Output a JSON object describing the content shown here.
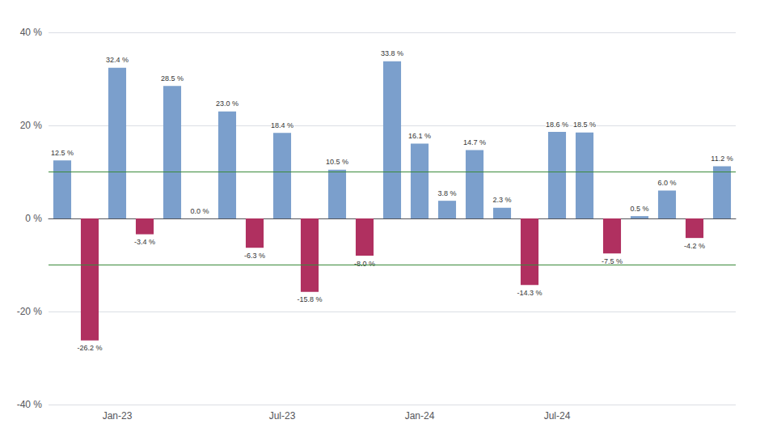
{
  "chart_data": {
    "type": "bar",
    "categories": [
      null,
      null,
      "Jan-23",
      null,
      null,
      null,
      null,
      null,
      "Jul-23",
      null,
      null,
      null,
      null,
      "Jan-24",
      null,
      null,
      null,
      null,
      "Jul-24",
      null,
      null,
      null,
      null,
      null,
      null
    ],
    "values": [
      12.5,
      -26.2,
      32.4,
      -3.4,
      28.5,
      0.0,
      23.0,
      -6.3,
      18.4,
      -15.8,
      10.5,
      -8.0,
      33.8,
      16.1,
      3.8,
      14.7,
      2.3,
      -14.3,
      18.6,
      18.5,
      -7.5,
      0.5,
      6.0,
      -4.2,
      11.2
    ],
    "value_labels": [
      "12.5 %",
      "-26.2 %",
      "32.4 %",
      "-3.4 %",
      "28.5 %",
      "0.0 %",
      "23.0 %",
      "-6.3 %",
      "18.4 %",
      "-15.8 %",
      "10.5 %",
      "-8.0 %",
      "33.8 %",
      "16.1 %",
      "3.8 %",
      "14.7 %",
      "2.3 %",
      "-14.3 %",
      "18.6 %",
      "18.5 %",
      "-7.5 %",
      "0.5 %",
      "6.0 %",
      "-4.2 %",
      "11.2 %"
    ],
    "colors": [
      "#7B9FCC",
      "#B03060",
      "#7B9FCC",
      "#B03060",
      "#7B9FCC",
      "#B03060",
      "#7B9FCC",
      "#B03060",
      "#7B9FCC",
      "#B03060",
      "#7B9FCC",
      "#B03060",
      "#7B9FCC",
      "#7B9FCC",
      "#7B9FCC",
      "#7B9FCC",
      "#7B9FCC",
      "#B03060",
      "#7B9FCC",
      "#7B9FCC",
      "#B03060",
      "#7B9FCC",
      "#7B9FCC",
      "#B03060",
      "#7B9FCC"
    ],
    "data_labels": true,
    "hlines": [
      {
        "value": 10,
        "color": "#3A8A3A"
      },
      {
        "value": -10,
        "color": "#3A8A3A"
      }
    ],
    "ylim": [
      -40,
      40
    ],
    "yticks": [
      {
        "value": -40,
        "label": "-40 %"
      },
      {
        "value": -20,
        "label": "-20 %"
      },
      {
        "value": 0,
        "label": "0 %"
      },
      {
        "value": 20,
        "label": "20 %"
      },
      {
        "value": 40,
        "label": "40 %"
      }
    ],
    "grid": true
  }
}
